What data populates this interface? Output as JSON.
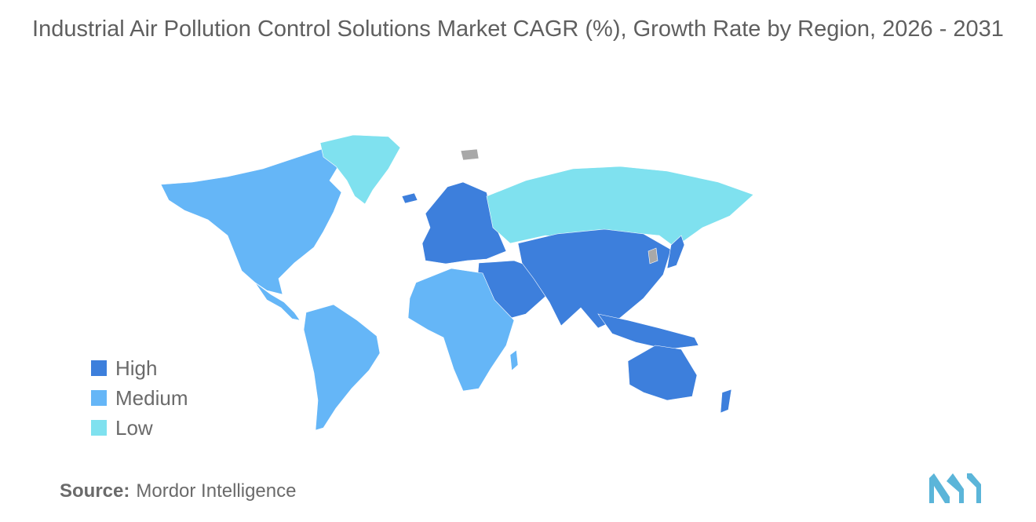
{
  "title": "Industrial Air Pollution Control Solutions Market CAGR (%), Growth Rate by Region, 2026 - 2031",
  "legend": [
    {
      "label": "High",
      "color": "#3d7fdc"
    },
    {
      "label": "Medium",
      "color": "#65b6f7"
    },
    {
      "label": "Low",
      "color": "#7fe1ef"
    }
  ],
  "source": {
    "label": "Source:",
    "value": "Mordor Intelligence"
  },
  "map": {
    "no_data_color": "#a8a8a8",
    "regions": {
      "north_america": "Medium",
      "south_america": "Medium",
      "greenland": "Low",
      "europe": "High",
      "russia": "Low",
      "middle_east": "High",
      "africa": "Medium",
      "asia_pacific": "High",
      "oceania": "High"
    }
  },
  "logo": {
    "color": "#5bb5d9",
    "icon": "mordor-intelligence-logo"
  }
}
